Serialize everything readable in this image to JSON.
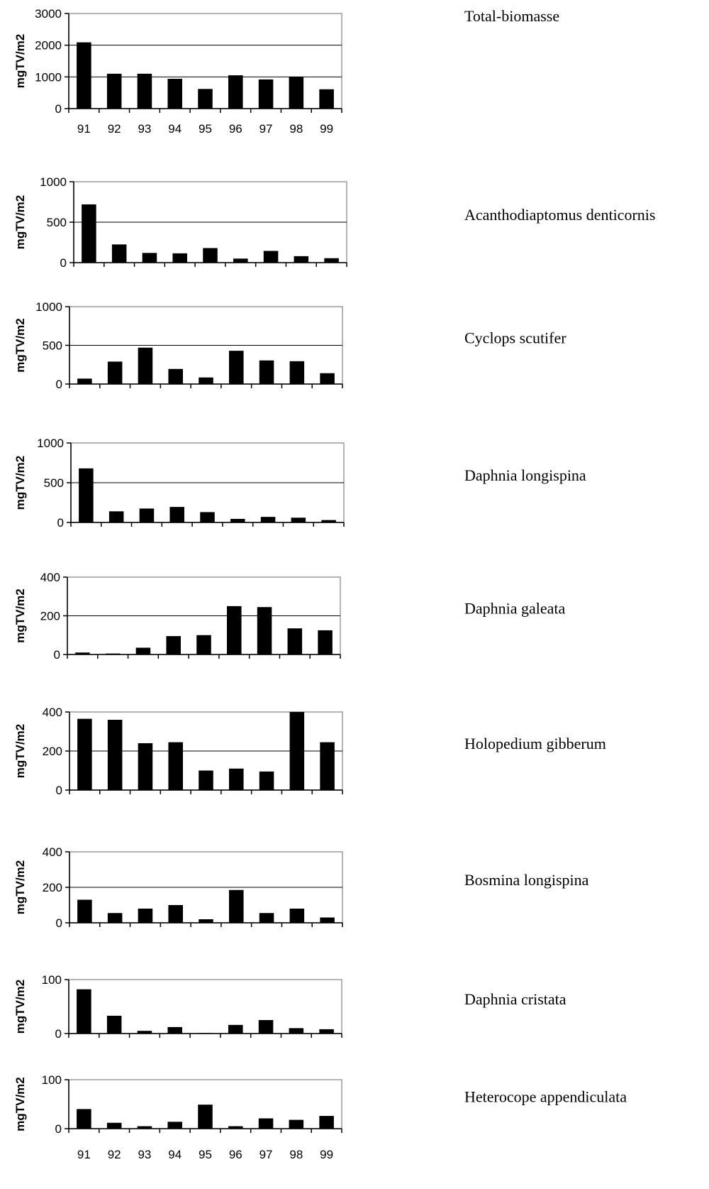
{
  "chart_data": [
    {
      "type": "bar",
      "title": "Total-biomasse",
      "ylabel": "mgTV/m2",
      "ylim": [
        0,
        3000
      ],
      "yticks": [
        0,
        1000,
        2000,
        3000
      ],
      "show_xticklabels": true,
      "categories": [
        "91",
        "92",
        "93",
        "94",
        "95",
        "96",
        "97",
        "98",
        "99"
      ],
      "values": [
        2090,
        1100,
        1100,
        940,
        620,
        1050,
        920,
        1010,
        610
      ]
    },
    {
      "type": "bar",
      "title": "Acanthodiaptomus denticornis",
      "ylabel": "mgTV/m2",
      "ylim": [
        0,
        1000
      ],
      "yticks": [
        0,
        500,
        1000
      ],
      "show_xticklabels": false,
      "categories": [
        "91",
        "92",
        "93",
        "94",
        "95",
        "96",
        "97",
        "98",
        "99"
      ],
      "values": [
        720,
        225,
        120,
        115,
        180,
        50,
        145,
        80,
        55
      ]
    },
    {
      "type": "bar",
      "title": "Cyclops scutifer",
      "ylabel": "mgTV/m2",
      "ylim": [
        0,
        1000
      ],
      "yticks": [
        0,
        500,
        1000
      ],
      "show_xticklabels": false,
      "categories": [
        "91",
        "92",
        "93",
        "94",
        "95",
        "96",
        "97",
        "98",
        "99"
      ],
      "values": [
        70,
        290,
        470,
        195,
        85,
        430,
        305,
        295,
        140
      ]
    },
    {
      "type": "bar",
      "title": "Daphnia longispina",
      "ylabel": "mgTV/m2",
      "ylim": [
        0,
        1000
      ],
      "yticks": [
        0,
        500,
        1000
      ],
      "show_xticklabels": false,
      "categories": [
        "91",
        "92",
        "93",
        "94",
        "95",
        "96",
        "97",
        "98",
        "99"
      ],
      "values": [
        680,
        140,
        175,
        195,
        130,
        45,
        70,
        60,
        30
      ]
    },
    {
      "type": "bar",
      "title": "Daphnia galeata",
      "ylabel": "mgTV/m2",
      "ylim": [
        0,
        400
      ],
      "yticks": [
        0,
        200,
        400
      ],
      "show_xticklabels": false,
      "categories": [
        "91",
        "92",
        "93",
        "94",
        "95",
        "96",
        "97",
        "98",
        "99"
      ],
      "values": [
        10,
        5,
        35,
        95,
        100,
        250,
        245,
        135,
        125
      ]
    },
    {
      "type": "bar",
      "title": "Holopedium gibberum",
      "ylabel": "mgTV/m2",
      "ylim": [
        0,
        400
      ],
      "yticks": [
        0,
        200,
        400
      ],
      "show_xticklabels": false,
      "categories": [
        "91",
        "92",
        "93",
        "94",
        "95",
        "96",
        "97",
        "98",
        "99"
      ],
      "values": [
        365,
        360,
        240,
        245,
        100,
        110,
        95,
        400,
        245
      ]
    },
    {
      "type": "bar",
      "title": "Bosmina longispina",
      "ylabel": "mgTV/m2",
      "ylim": [
        0,
        400
      ],
      "yticks": [
        0,
        200,
        400
      ],
      "show_xticklabels": false,
      "categories": [
        "91",
        "92",
        "93",
        "94",
        "95",
        "96",
        "97",
        "98",
        "99"
      ],
      "values": [
        130,
        55,
        80,
        100,
        20,
        185,
        55,
        80,
        30
      ]
    },
    {
      "type": "bar",
      "title": "Daphnia cristata",
      "ylabel": "mgTV/m2",
      "ylim": [
        0,
        100
      ],
      "yticks": [
        0,
        100
      ],
      "show_xticklabels": false,
      "categories": [
        "91",
        "92",
        "93",
        "94",
        "95",
        "96",
        "97",
        "98",
        "99"
      ],
      "values": [
        82,
        33,
        5,
        12,
        1,
        16,
        25,
        10,
        8
      ]
    },
    {
      "type": "bar",
      "title": "Heterocope appendiculata",
      "ylabel": "mgTV/m2",
      "ylim": [
        0,
        100
      ],
      "yticks": [
        0,
        100
      ],
      "show_xticklabels": true,
      "categories": [
        "91",
        "92",
        "93",
        "94",
        "95",
        "96",
        "97",
        "98",
        "99"
      ],
      "values": [
        40,
        12,
        5,
        14,
        49,
        5,
        21,
        18,
        26
      ]
    }
  ]
}
